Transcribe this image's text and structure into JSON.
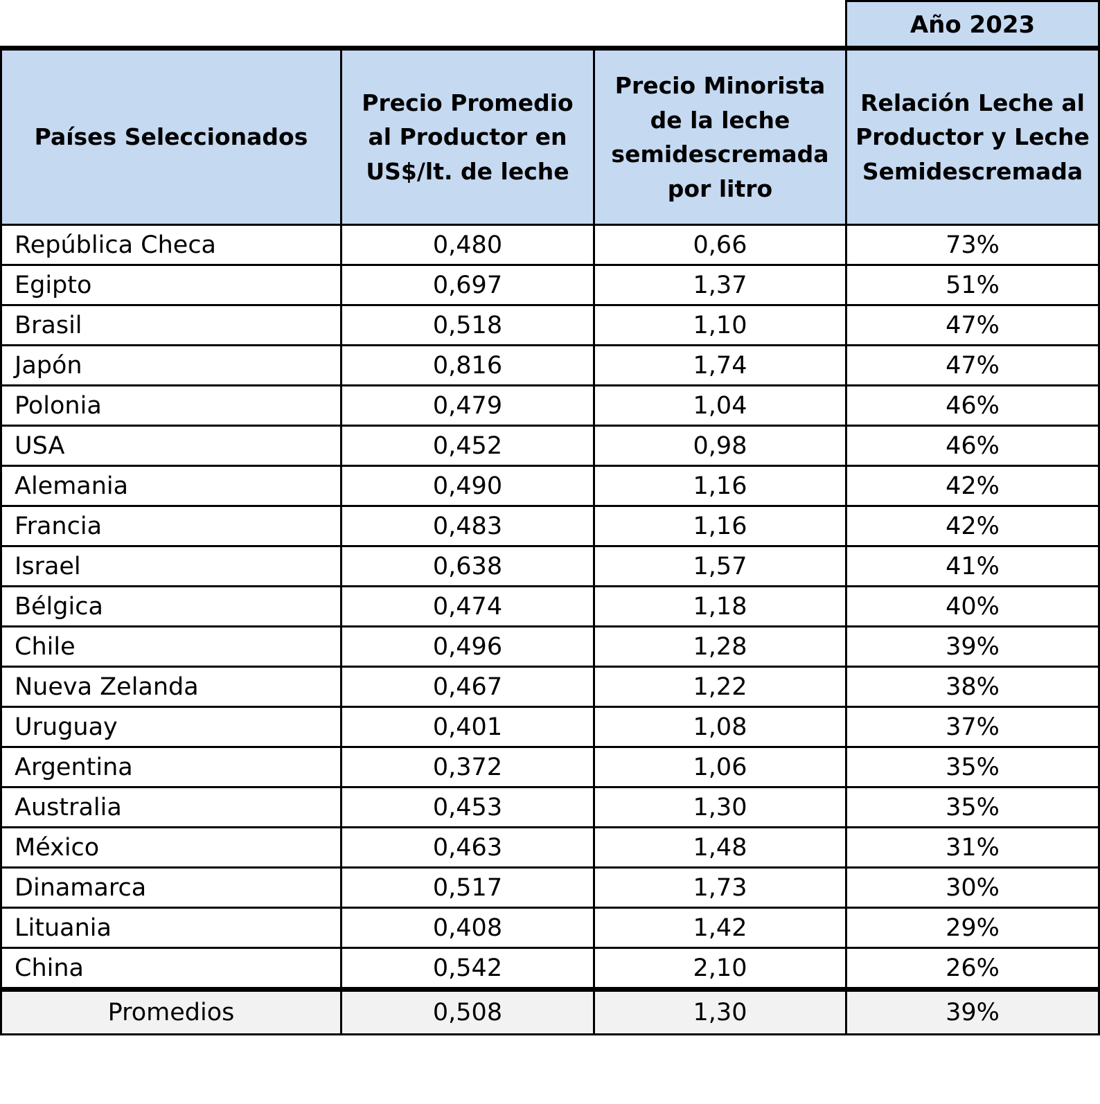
{
  "header": {
    "year": "Año 2023",
    "columns": [
      "Países Seleccionados",
      "Precio Promedio al Productor en US$/lt. de leche",
      "Precio Minorista de la leche semidescremada por litro",
      "Relación Leche al Productor y Leche Semidescremada"
    ]
  },
  "table": {
    "rows": [
      [
        "República Checa",
        "0,480",
        "0,66",
        "73%"
      ],
      [
        "Egipto",
        "0,697",
        "1,37",
        "51%"
      ],
      [
        "Brasil",
        "0,518",
        "1,10",
        "47%"
      ],
      [
        "Japón",
        "0,816",
        "1,74",
        "47%"
      ],
      [
        "Polonia",
        "0,479",
        "1,04",
        "46%"
      ],
      [
        "USA",
        "0,452",
        "0,98",
        "46%"
      ],
      [
        "Alemania",
        "0,490",
        "1,16",
        "42%"
      ],
      [
        "Francia",
        "0,483",
        "1,16",
        "42%"
      ],
      [
        "Israel",
        "0,638",
        "1,57",
        "41%"
      ],
      [
        "Bélgica",
        "0,474",
        "1,18",
        "40%"
      ],
      [
        "Chile",
        "0,496",
        "1,28",
        "39%"
      ],
      [
        "Nueva Zelanda",
        "0,467",
        "1,22",
        "38%"
      ],
      [
        "Uruguay",
        "0,401",
        "1,08",
        "37%"
      ],
      [
        "Argentina",
        "0,372",
        "1,06",
        "35%"
      ],
      [
        "Australia",
        "0,453",
        "1,30",
        "35%"
      ],
      [
        "México",
        "0,463",
        "1,48",
        "31%"
      ],
      [
        "Dinamarca",
        "0,517",
        "1,73",
        "30%"
      ],
      [
        "Lituania",
        "0,408",
        "1,42",
        "29%"
      ],
      [
        "China",
        "0,542",
        "2,10",
        "26%"
      ]
    ]
  },
  "footer": {
    "label": "Promedios",
    "values": [
      "0,508",
      "1,30",
      "39%"
    ]
  }
}
